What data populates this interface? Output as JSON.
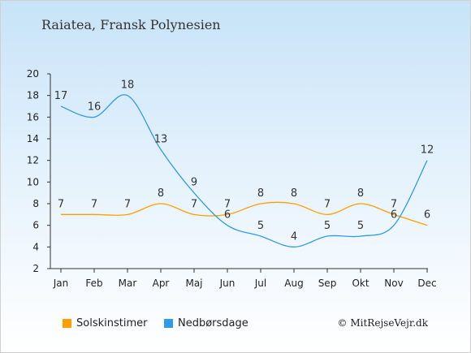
{
  "title": "Raiatea, Fransk Polynesien",
  "copyright": "© MitRejseVejr.dk",
  "colors": {
    "sun": "#FF9E00",
    "rain": "#2E9BE6"
  },
  "chart_data": {
    "type": "line",
    "categories": [
      "Jan",
      "Feb",
      "Mar",
      "Apr",
      "Maj",
      "Jun",
      "Jul",
      "Aug",
      "Sep",
      "Okt",
      "Nov",
      "Dec"
    ],
    "ylim": [
      2,
      20
    ],
    "yticks": [
      2,
      4,
      6,
      8,
      10,
      12,
      14,
      16,
      18,
      20
    ],
    "grid": false,
    "legend": "bottom",
    "series": [
      {
        "name": "Solskinstimer",
        "color": "#FF9E00",
        "values": [
          7,
          7,
          7,
          8,
          7,
          7,
          8,
          8,
          7,
          8,
          7,
          6
        ]
      },
      {
        "name": "Nedbørsdage",
        "color": "#2E9BE6",
        "values": [
          17,
          16,
          18,
          13,
          9,
          6,
          5,
          4,
          5,
          5,
          6,
          12
        ]
      }
    ]
  }
}
